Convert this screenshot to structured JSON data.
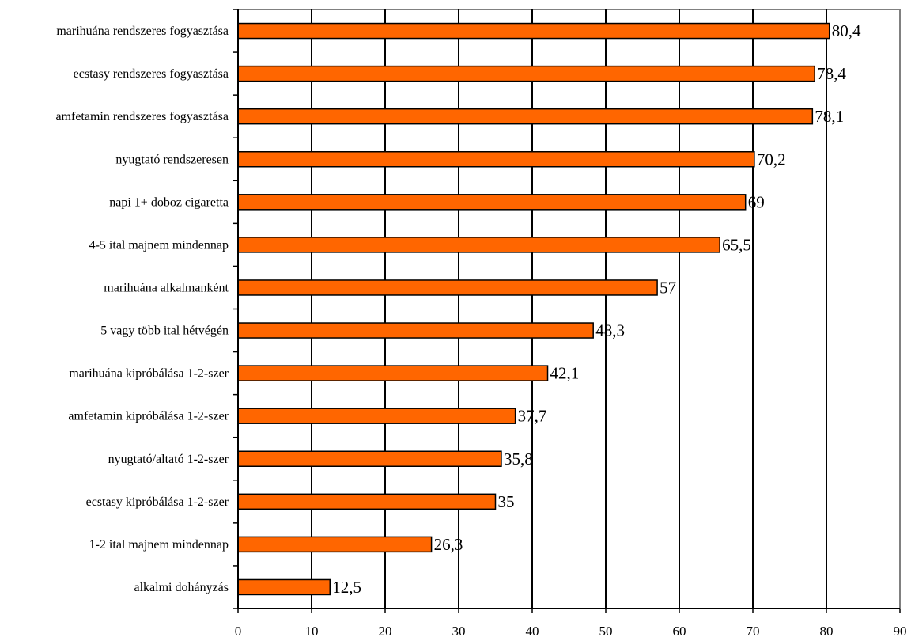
{
  "chart_data": {
    "type": "bar",
    "orientation": "horizontal",
    "categories": [
      "marihuána rendszeres fogyasztása",
      "ecstasy rendszeres fogyasztása",
      "amfetamin rendszeres fogyasztása",
      "nyugtató rendszeresen",
      "napi 1+ doboz cigaretta",
      "4-5 ital majnem mindennap",
      "marihuána alkalmanként",
      "5 vagy több ital hétvégén",
      "marihuána kipróbálása 1-2-szer",
      "amfetamin kipróbálása 1-2-szer",
      "nyugtató/altató 1-2-szer",
      "ecstasy kipróbálása 1-2-szer",
      "1-2 ital majnem mindennap",
      "alkalmi dohányzás"
    ],
    "values": [
      80.4,
      78.4,
      78.1,
      70.2,
      69,
      65.5,
      57,
      48.3,
      42.1,
      37.7,
      35.8,
      35,
      26.3,
      12.5
    ],
    "value_labels": [
      "80,4",
      "78,4",
      "78,1",
      "70,2",
      "69",
      "65,5",
      "57",
      "48,3",
      "42,1",
      "37,7",
      "35,8",
      "35",
      "26,3",
      "12,5"
    ],
    "xticks": [
      "0",
      "10",
      "20",
      "30",
      "40",
      "50",
      "60",
      "70",
      "80",
      "90"
    ],
    "xlim": [
      0,
      90
    ],
    "grid": "vertical",
    "legend": "none",
    "colors": {
      "bar": "#FF6600",
      "bar_edge": "#000000",
      "grid": "#000000",
      "frame": "#808080"
    }
  }
}
